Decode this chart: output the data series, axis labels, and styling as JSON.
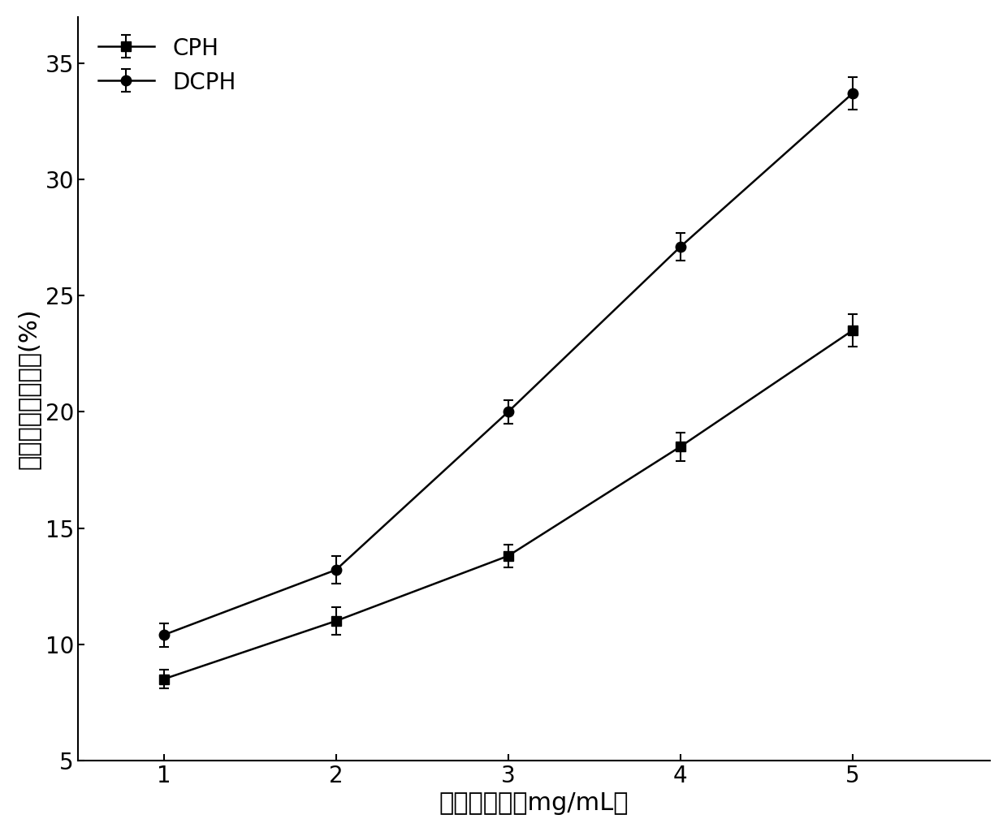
{
  "x": [
    1,
    2,
    3,
    4,
    5
  ],
  "CPH_y": [
    8.5,
    11.0,
    13.8,
    18.5,
    23.5
  ],
  "DCPH_y": [
    10.4,
    13.2,
    20.0,
    27.1,
    33.7
  ],
  "CPH_yerr": [
    0.4,
    0.6,
    0.5,
    0.6,
    0.7
  ],
  "DCPH_yerr": [
    0.5,
    0.6,
    0.5,
    0.6,
    0.7
  ],
  "xlabel": "多糖的浓度（mg/mL）",
  "ylabel": "羟自由基清除能力(%)",
  "xlim": [
    0.5,
    5.8
  ],
  "ylim": [
    5,
    37
  ],
  "yticks": [
    5,
    10,
    15,
    20,
    25,
    30,
    35
  ],
  "xticks": [
    1,
    2,
    3,
    4,
    5
  ],
  "legend_CPH": "CPH",
  "legend_DCPH": "DCPH",
  "line_color": "#000000",
  "background_color": "#ffffff",
  "marker_CPH": "s",
  "marker_DCPH": "o",
  "markersize": 9,
  "linewidth": 1.8,
  "capsize": 4,
  "label_fontsize": 22,
  "tick_fontsize": 20,
  "legend_fontsize": 20
}
